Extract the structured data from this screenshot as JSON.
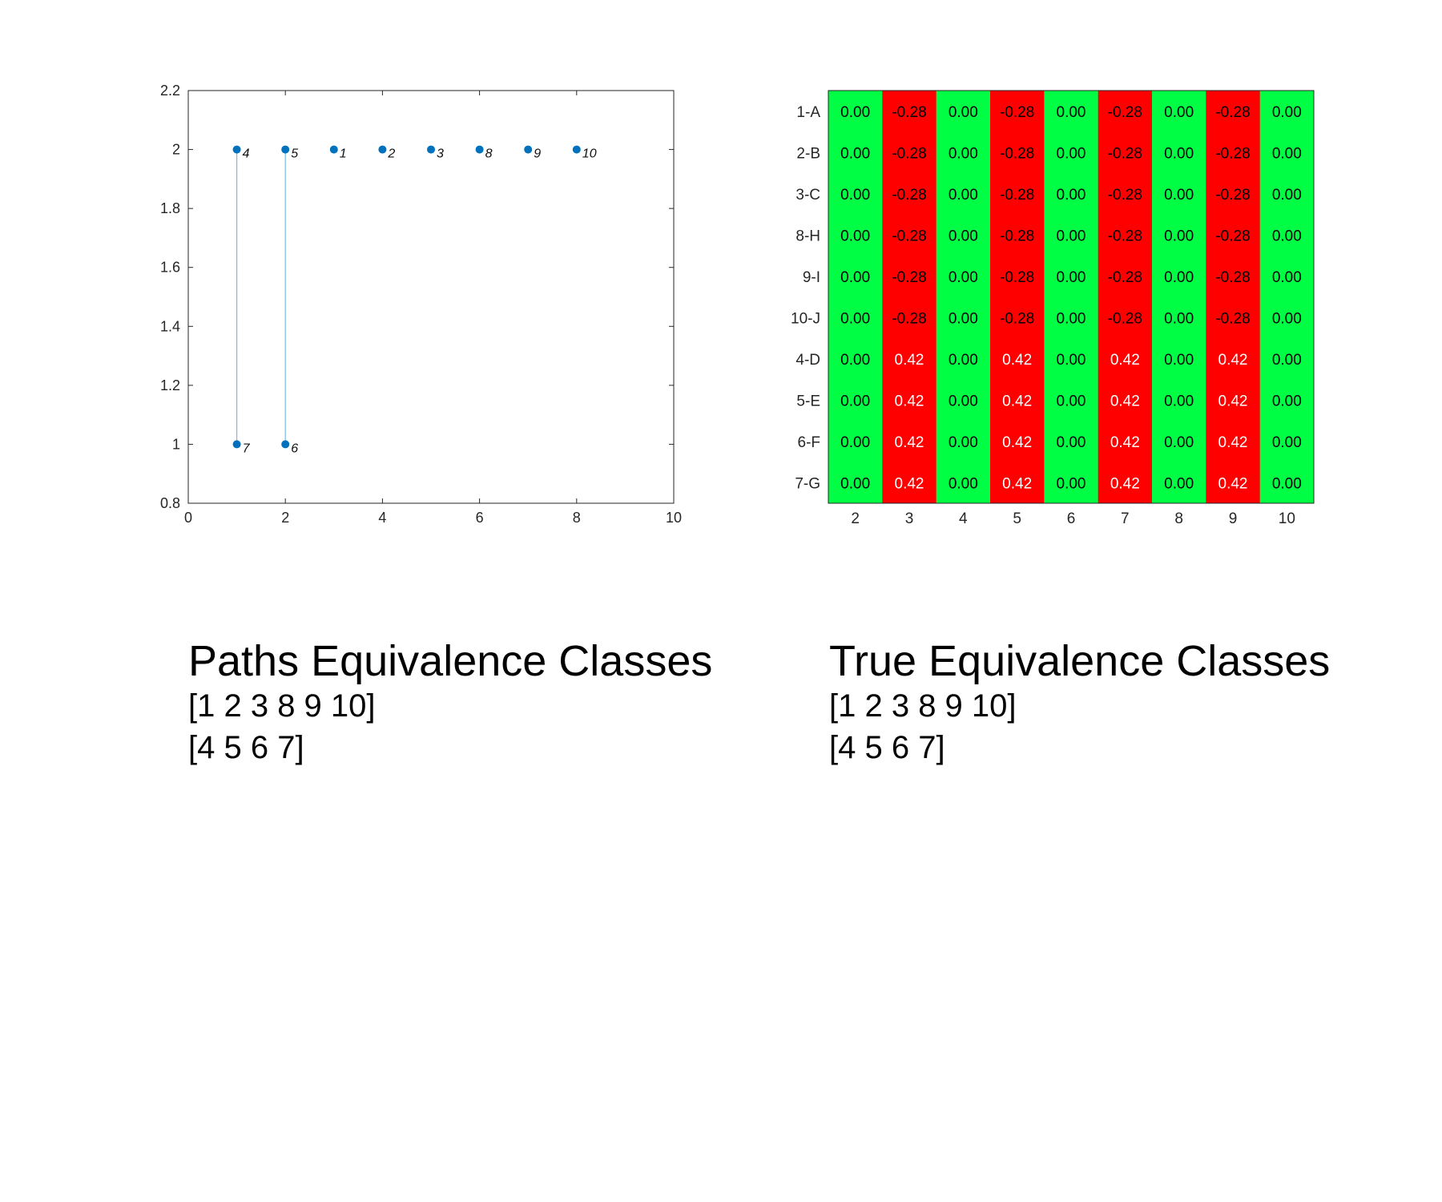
{
  "chart_data": [
    {
      "type": "scatter",
      "title": "",
      "xlabel": "",
      "ylabel": "",
      "xlim": [
        0,
        10
      ],
      "ylim": [
        0.8,
        2.2
      ],
      "x_ticks": [
        0,
        2,
        4,
        6,
        8,
        10
      ],
      "y_ticks": [
        0.8,
        1,
        1.2,
        1.4,
        1.6,
        1.8,
        2,
        2.2
      ],
      "x_tick_labels": [
        "0",
        "2",
        "4",
        "6",
        "8",
        "10"
      ],
      "y_tick_labels": [
        "0.8",
        "1",
        "1.2",
        "1.4",
        "1.6",
        "1.8",
        "2",
        "2.2"
      ],
      "grid": false,
      "marker_color": "#0072bd",
      "points": [
        {
          "label": "4",
          "x": 1,
          "y": 2
        },
        {
          "label": "5",
          "x": 2,
          "y": 2
        },
        {
          "label": "1",
          "x": 3,
          "y": 2
        },
        {
          "label": "2",
          "x": 4,
          "y": 2
        },
        {
          "label": "3",
          "x": 5,
          "y": 2
        },
        {
          "label": "8",
          "x": 6,
          "y": 2
        },
        {
          "label": "9",
          "x": 7,
          "y": 2
        },
        {
          "label": "10",
          "x": 8,
          "y": 2
        },
        {
          "label": "7",
          "x": 1,
          "y": 1
        },
        {
          "label": "6",
          "x": 2,
          "y": 1
        }
      ],
      "segments": [
        {
          "x": 1,
          "y1": 1,
          "y2": 2
        },
        {
          "x": 2,
          "y1": 1,
          "y2": 2
        }
      ]
    },
    {
      "type": "heatmap",
      "title": "",
      "rows": [
        "1-A",
        "2-B",
        "3-C",
        "8-H",
        "9-I",
        "10-J",
        "4-D",
        "5-E",
        "6-F",
        "7-G"
      ],
      "columns": [
        "2",
        "3",
        "4",
        "5",
        "6",
        "7",
        "8",
        "9",
        "10"
      ],
      "values": [
        [
          "0.00",
          "-0.28",
          "0.00",
          "-0.28",
          "0.00",
          "-0.28",
          "0.00",
          "-0.28",
          "0.00"
        ],
        [
          "0.00",
          "-0.28",
          "0.00",
          "-0.28",
          "0.00",
          "-0.28",
          "0.00",
          "-0.28",
          "0.00"
        ],
        [
          "0.00",
          "-0.28",
          "0.00",
          "-0.28",
          "0.00",
          "-0.28",
          "0.00",
          "-0.28",
          "0.00"
        ],
        [
          "0.00",
          "-0.28",
          "0.00",
          "-0.28",
          "0.00",
          "-0.28",
          "0.00",
          "-0.28",
          "0.00"
        ],
        [
          "0.00",
          "-0.28",
          "0.00",
          "-0.28",
          "0.00",
          "-0.28",
          "0.00",
          "-0.28",
          "0.00"
        ],
        [
          "0.00",
          "-0.28",
          "0.00",
          "-0.28",
          "0.00",
          "-0.28",
          "0.00",
          "-0.28",
          "0.00"
        ],
        [
          "0.00",
          "0.42",
          "0.00",
          "0.42",
          "0.00",
          "0.42",
          "0.00",
          "0.42",
          "0.00"
        ],
        [
          "0.00",
          "0.42",
          "0.00",
          "0.42",
          "0.00",
          "0.42",
          "0.00",
          "0.42",
          "0.00"
        ],
        [
          "0.00",
          "0.42",
          "0.00",
          "0.42",
          "0.00",
          "0.42",
          "0.00",
          "0.42",
          "0.00"
        ],
        [
          "0.00",
          "0.42",
          "0.00",
          "0.42",
          "0.00",
          "0.42",
          "0.00",
          "0.42",
          "0.00"
        ]
      ],
      "colors": {
        "zero": "#00ff44",
        "nonzero": "#ff0000"
      }
    }
  ],
  "captions": {
    "left": {
      "title": "Paths Equivalence Classes",
      "line1": "[1 2 3 8 9 10]",
      "line2": "[4 5 6 7]"
    },
    "right": {
      "title": "True Equivalence Classes",
      "line1": "[1 2 3 8 9 10]",
      "line2": "[4 5 6 7]"
    }
  }
}
